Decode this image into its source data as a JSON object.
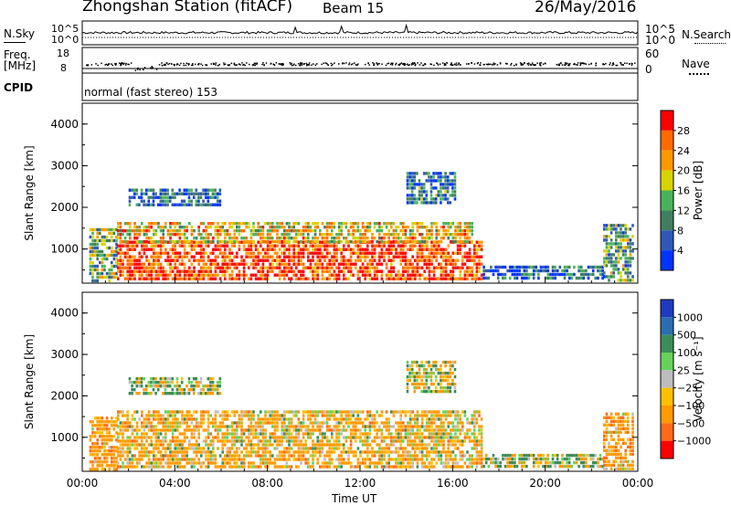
{
  "header": {
    "title": "Zhongshan Station (fitACF)",
    "beam": "Beam 15",
    "date": "26/May/2016"
  },
  "sky_panel": {
    "left_label": "N.Sky",
    "right_label": "N.Search",
    "left_ticks": [
      "10^5",
      "10^0"
    ],
    "right_ticks": [
      "10^5",
      "10^0"
    ]
  },
  "freq_panel": {
    "left_label_1": "Freq.",
    "left_label_2": "[MHz]",
    "right_label": "Nave",
    "left_ticks": [
      "18",
      "8"
    ],
    "right_ticks": [
      "60",
      "0"
    ]
  },
  "cpid": {
    "label": "CPID",
    "value": "normal (fast stereo) 153"
  },
  "x_axis": {
    "label": "Time UT",
    "ticks": [
      "00:00",
      "04:00",
      "08:00",
      "12:00",
      "16:00",
      "20:00",
      "00:00"
    ]
  },
  "colors": {
    "power_scale": [
      "#0033ff",
      "#2f58b5",
      "#3f7f5f",
      "#49b35a",
      "#d6d400",
      "#ff9900",
      "#ff6a00",
      "#ff0000"
    ],
    "velocity_scale": [
      "#ff0000",
      "#ff6a1a",
      "#ff9a00",
      "#ffc000",
      "#bdbdbd",
      "#66d25a",
      "#3c8c5a",
      "#2a6db0",
      "#1e3bbf"
    ]
  },
  "chart_data": [
    {
      "type": "heatmap",
      "title": "",
      "xlabel": "Time UT",
      "ylabel": "Slant Range [km]",
      "xlim": [
        0,
        24
      ],
      "ylim": [
        180,
        4500
      ],
      "x_ticks": [
        "00:00",
        "04:00",
        "08:00",
        "12:00",
        "16:00",
        "20:00",
        "00:00"
      ],
      "y_ticks": [
        1000,
        2000,
        3000,
        4000
      ],
      "colorbar": {
        "label": "Power [dB]",
        "ticks": [
          "4",
          "8",
          "12",
          "16",
          "20",
          "24",
          "28"
        ]
      },
      "regions": [
        {
          "t_start": 0.3,
          "t_end": 1.5,
          "r_low": 250,
          "r_high": 1500,
          "value": 14
        },
        {
          "t_start": 1.5,
          "t_end": 17.3,
          "r_low": 300,
          "r_high": 1200,
          "value": 28
        },
        {
          "t_start": 1.5,
          "t_end": 16.8,
          "r_low": 1200,
          "r_high": 1650,
          "value": 20
        },
        {
          "t_start": 2.0,
          "t_end": 6.0,
          "r_low": 2050,
          "r_high": 2450,
          "value": 6
        },
        {
          "t_start": 14.0,
          "t_end": 16.1,
          "r_low": 2100,
          "r_high": 2850,
          "value": 8
        },
        {
          "t_start": 17.3,
          "t_end": 22.5,
          "r_low": 260,
          "r_high": 600,
          "value": 6
        },
        {
          "t_start": 22.5,
          "t_end": 23.8,
          "r_low": 260,
          "r_high": 1600,
          "value": 12
        }
      ]
    },
    {
      "type": "heatmap",
      "title": "",
      "xlabel": "Time UT",
      "ylabel": "Slant Range [km]",
      "xlim": [
        0,
        24
      ],
      "ylim": [
        180,
        4500
      ],
      "x_ticks": [
        "00:00",
        "04:00",
        "08:00",
        "12:00",
        "16:00",
        "20:00",
        "00:00"
      ],
      "y_ticks": [
        1000,
        2000,
        3000,
        4000
      ],
      "colorbar": {
        "label": "Velocity [m s⁻¹]",
        "ticks": [
          "1000",
          "500",
          "100",
          "25",
          "−25",
          "−100",
          "−500",
          "−1000"
        ]
      },
      "regions": [
        {
          "t_start": 0.3,
          "t_end": 1.5,
          "r_low": 250,
          "r_high": 1500,
          "value": -300
        },
        {
          "t_start": 1.5,
          "t_end": 17.3,
          "r_low": 300,
          "r_high": 1650,
          "value": -200
        },
        {
          "t_start": 2.0,
          "t_end": 6.0,
          "r_low": 2050,
          "r_high": 2450,
          "value": 0
        },
        {
          "t_start": 14.0,
          "t_end": 16.1,
          "r_low": 2100,
          "r_high": 2850,
          "value": -50
        },
        {
          "t_start": 17.3,
          "t_end": 22.5,
          "r_low": 260,
          "r_high": 600,
          "value": 50
        },
        {
          "t_start": 22.5,
          "t_end": 23.8,
          "r_low": 260,
          "r_high": 1600,
          "value": -300
        }
      ]
    }
  ]
}
